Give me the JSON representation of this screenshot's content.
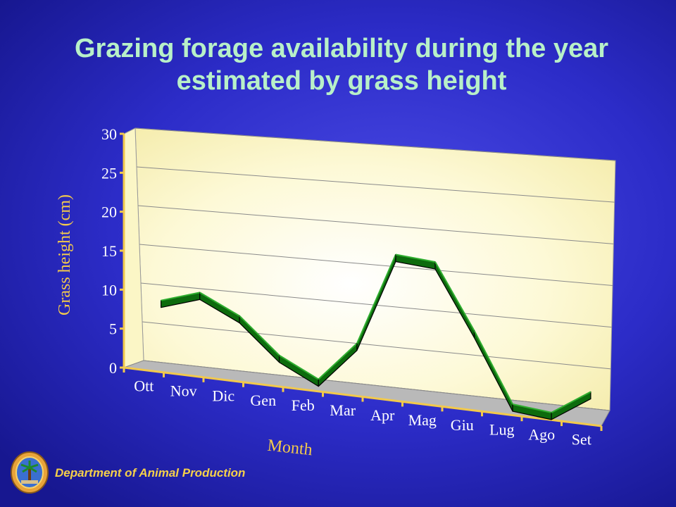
{
  "title": "Grazing forage availability during the year estimated by grass height",
  "footer": "Department of Animal Production",
  "colors": {
    "title": "#b8f0c8",
    "axis_title": "#f2c94c",
    "line": "#1a8a1a",
    "background": "#2c2cc8"
  },
  "chart_data": {
    "type": "line",
    "style": "3d-ribbon",
    "categories": [
      "Ott",
      "Nov",
      "Dic",
      "Gen",
      "Feb",
      "Mar",
      "Apr",
      "Mag",
      "Giu",
      "Lug",
      "Ago",
      "Set"
    ],
    "series": [
      {
        "values": [
          8,
          9.5,
          7,
          2.5,
          0,
          5,
          16.5,
          16,
          8,
          -0.5,
          -1,
          2
        ]
      }
    ],
    "xlabel": "Month",
    "ylabel": "Grass height (cm)",
    "yticks": [
      "0",
      "5",
      "10",
      "15",
      "20",
      "25",
      "30"
    ],
    "ylim": [
      0,
      30
    ],
    "grid": true
  }
}
